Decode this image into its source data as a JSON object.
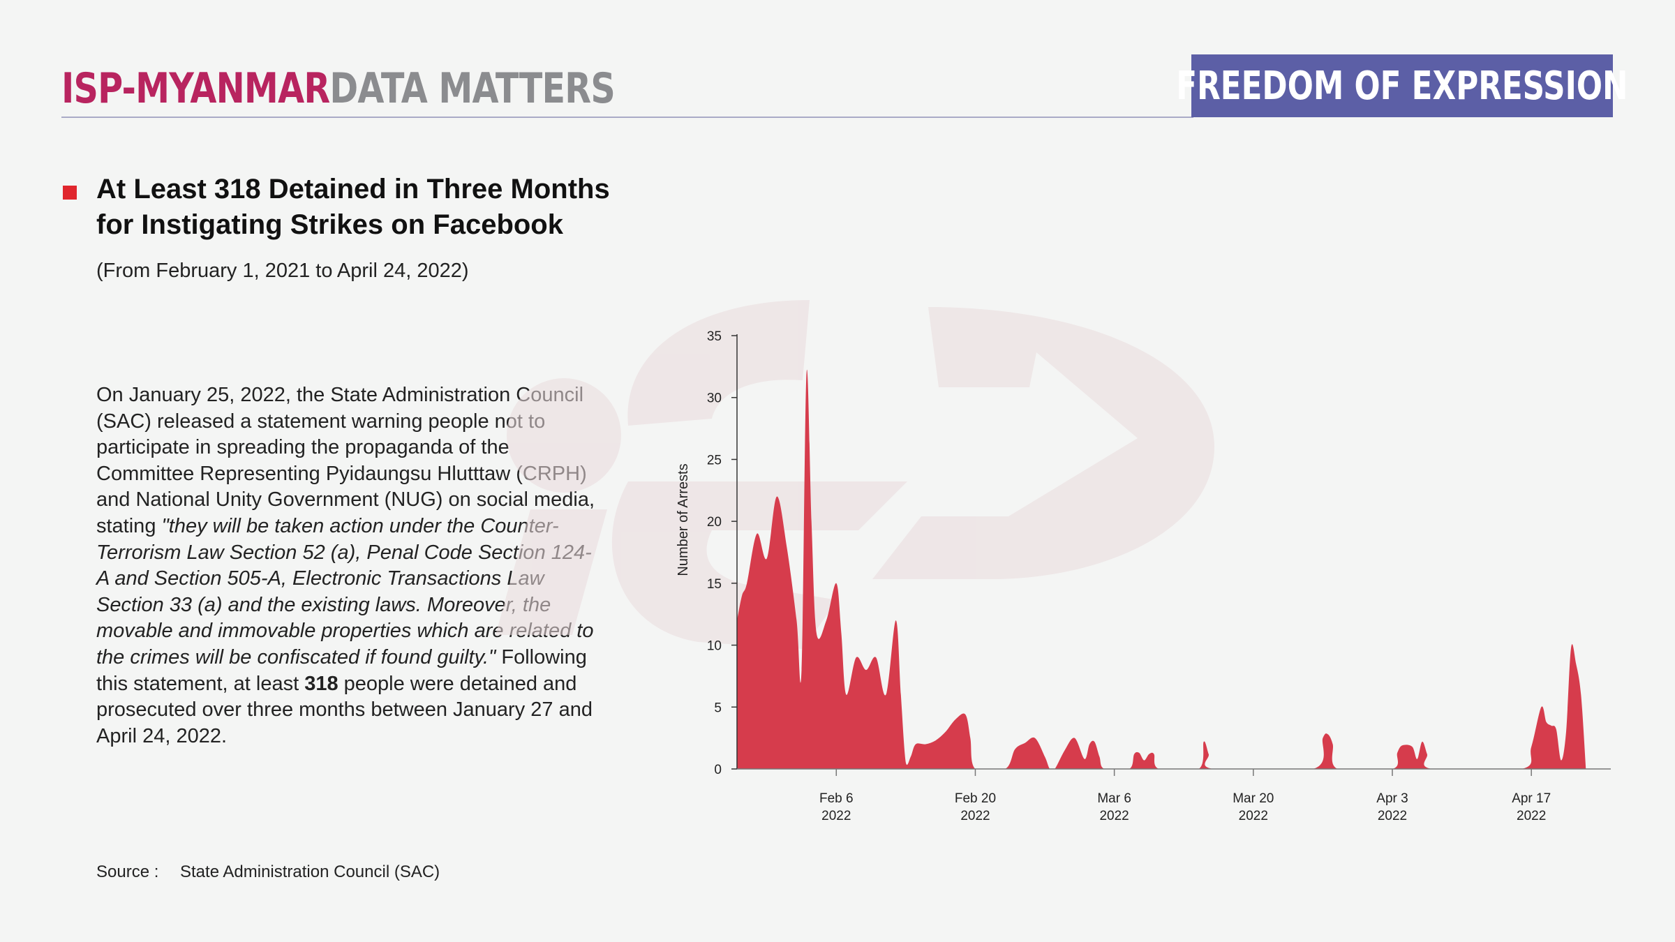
{
  "header": {
    "brand_primary": "ISP-MYANMAR",
    "brand_secondary": "DATA MATTERS",
    "category": "FREEDOM OF EXPRESSION"
  },
  "title_line1": "At Least 318 Detained in Three Months",
  "title_line2": "for Instigating Strikes on Facebook",
  "subtitle": "(From February 1, 2021 to April 24, 2022)",
  "body": {
    "intro": "On January 25, 2022, the State Administration Council (SAC) released a statement warning people not to participate in spreading the propaganda of the Committee Representing Pyidaungsu Hlutttaw (CRPH) and National Unity Government (NUG) on social media, stating ",
    "quote": "\"they will be taken action under the Counter-Terrorism Law Section 52 (a), Penal Code Section 124-A and Section 505-A, Electronic Transactions Law Section 33 (a) and the existing laws. Moreover, the movable and immovable properties which are related to the crimes will be confiscated if found guilty.\"",
    "after_quote": " Following this statement, at least ",
    "count": "318",
    "closing": " people were detained and prosecuted over three months between January 27 and April 24, 2022."
  },
  "source": {
    "label": "Source :",
    "value": "State Administration Council (SAC)"
  },
  "colors": {
    "fill": "#d63c4c",
    "brand": "#b8245f",
    "banner": "#5c5fa6",
    "bullet": "#e0262d"
  },
  "chart_data": {
    "type": "area",
    "ylabel": "Number of Arrests",
    "ylim": [
      0,
      35
    ],
    "yticks": [
      0,
      5,
      10,
      15,
      20,
      25,
      30,
      35
    ],
    "xlim": [
      "2022-01-27",
      "2022-04-25"
    ],
    "xticks": [
      {
        "date": "2022-02-06",
        "label1": "Feb 6",
        "label2": "2022"
      },
      {
        "date": "2022-02-20",
        "label1": "Feb 20",
        "label2": "2022"
      },
      {
        "date": "2022-03-06",
        "label1": "Mar 6",
        "label2": "2022"
      },
      {
        "date": "2022-03-20",
        "label1": "Mar 20",
        "label2": "2022"
      },
      {
        "date": "2022-04-03",
        "label1": "Apr 3",
        "label2": "2022"
      },
      {
        "date": "2022-04-17",
        "label1": "Apr 17",
        "label2": "2022"
      }
    ],
    "series": [
      {
        "points": [
          [
            "2022-01-27T00:00",
            12
          ],
          [
            "2022-01-27T12:00",
            14
          ],
          [
            "2022-01-28T00:00",
            15
          ],
          [
            "2022-01-29T00:00",
            19
          ],
          [
            "2022-01-30T00:00",
            17
          ],
          [
            "2022-01-31T00:00",
            22
          ],
          [
            "2022-02-01T00:00",
            18
          ],
          [
            "2022-02-02T00:00",
            12
          ],
          [
            "2022-02-02T12:00",
            8
          ],
          [
            "2022-02-03T00:00",
            32
          ],
          [
            "2022-02-03T12:00",
            20
          ],
          [
            "2022-02-04T00:00",
            11
          ],
          [
            "2022-02-05T00:00",
            12
          ],
          [
            "2022-02-06T00:00",
            15
          ],
          [
            "2022-02-06T12:00",
            11
          ],
          [
            "2022-02-07T00:00",
            6
          ],
          [
            "2022-02-08T00:00",
            9
          ],
          [
            "2022-02-09T00:00",
            8
          ],
          [
            "2022-02-10T00:00",
            9
          ],
          [
            "2022-02-11T00:00",
            6
          ],
          [
            "2022-02-12T00:00",
            12
          ],
          [
            "2022-02-12T12:00",
            6
          ],
          [
            "2022-02-13T00:00",
            0.5
          ],
          [
            "2022-02-13T12:00",
            1
          ],
          [
            "2022-02-14T00:00",
            2
          ],
          [
            "2022-02-15T00:00",
            2
          ],
          [
            "2022-02-16T00:00",
            2.3
          ],
          [
            "2022-02-17T00:00",
            3
          ],
          [
            "2022-02-18T00:00",
            4
          ],
          [
            "2022-02-19T00:00",
            4.4
          ],
          [
            "2022-02-19T12:00",
            2.5
          ],
          [
            "2022-02-20T00:00",
            0
          ],
          [
            "2022-02-23T00:00",
            0
          ],
          [
            "2022-02-24T00:00",
            1.6
          ],
          [
            "2022-02-25T00:00",
            2.1
          ],
          [
            "2022-02-26T00:00",
            2.5
          ],
          [
            "2022-02-27T00:00",
            1
          ],
          [
            "2022-02-27T12:00",
            0
          ],
          [
            "2022-02-28T00:00",
            0
          ],
          [
            "2022-03-01T00:00",
            1.5
          ],
          [
            "2022-03-02T00:00",
            2.5
          ],
          [
            "2022-03-03T00:00",
            0.8
          ],
          [
            "2022-03-03T12:00",
            2
          ],
          [
            "2022-03-04T00:00",
            2.2
          ],
          [
            "2022-03-04T12:00",
            1
          ],
          [
            "2022-03-05T00:00",
            0
          ],
          [
            "2022-03-07T12:00",
            0
          ],
          [
            "2022-03-08T00:00",
            1.2
          ],
          [
            "2022-03-08T12:00",
            1.3
          ],
          [
            "2022-03-09T00:00",
            0.7
          ],
          [
            "2022-03-09T12:00",
            1.2
          ],
          [
            "2022-03-10T00:00",
            1.2
          ],
          [
            "2022-03-10T12:00",
            0
          ],
          [
            "2022-03-14T12:00",
            0
          ],
          [
            "2022-03-15T00:00",
            2.2
          ],
          [
            "2022-03-15T12:00",
            1.2
          ],
          [
            "2022-03-16T00:00",
            0
          ],
          [
            "2022-03-26T00:00",
            0
          ],
          [
            "2022-03-27T00:00",
            2.5
          ],
          [
            "2022-03-27T12:00",
            2.8
          ],
          [
            "2022-03-28T00:00",
            2
          ],
          [
            "2022-03-28T12:00",
            0
          ],
          [
            "2022-04-03T00:00",
            0
          ],
          [
            "2022-04-03T12:00",
            1.3
          ],
          [
            "2022-04-04T00:00",
            1.9
          ],
          [
            "2022-04-05T00:00",
            1.8
          ],
          [
            "2022-04-05T12:00",
            0.8
          ],
          [
            "2022-04-06T00:00",
            2.2
          ],
          [
            "2022-04-06T12:00",
            1.2
          ],
          [
            "2022-04-07T00:00",
            0
          ],
          [
            "2022-04-16T00:00",
            0
          ],
          [
            "2022-04-17T00:00",
            1.8
          ],
          [
            "2022-04-18T00:00",
            5
          ],
          [
            "2022-04-18T12:00",
            3.8
          ],
          [
            "2022-04-19T00:00",
            3.5
          ],
          [
            "2022-04-19T12:00",
            3.2
          ],
          [
            "2022-04-20T00:00",
            0.7
          ],
          [
            "2022-04-20T12:00",
            3
          ],
          [
            "2022-04-21T00:00",
            9.8
          ],
          [
            "2022-04-21T12:00",
            8.5
          ],
          [
            "2022-04-22T00:00",
            6
          ],
          [
            "2022-04-22T12:00",
            0
          ]
        ]
      }
    ]
  }
}
